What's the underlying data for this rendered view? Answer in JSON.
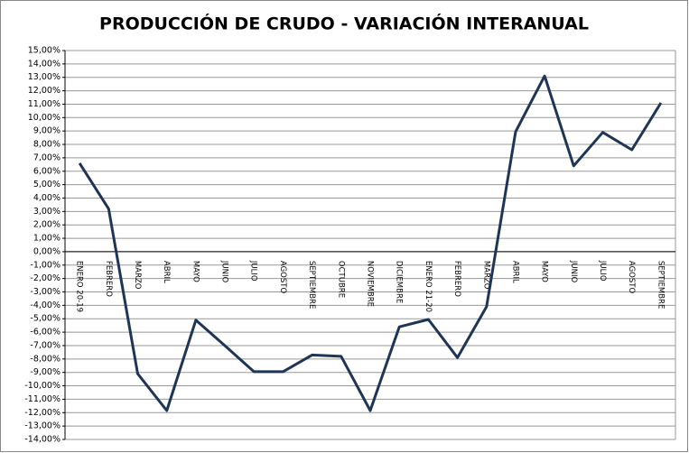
{
  "chart_data": {
    "type": "line",
    "title": "PRODUCCIÓN DE CRUDO - VARIACIÓN INTERANUAL",
    "categories": [
      "ENERO 20-19",
      "FEBRERO",
      "MARZO",
      "ABRIL",
      "MAYO",
      "JUNIO",
      "JULIO",
      "AGOSTO",
      "SEPTIEMBRE",
      "OCTUBRE",
      "NOVIEMBRE",
      "DICIEMBRE",
      "ENERO 21-20",
      "FEBRERO",
      "MARZO",
      "ABRIL",
      "MAYO",
      "JUNIO",
      "JULIO",
      "AGOSTO",
      "SEPTIEMBRE"
    ],
    "values": [
      6.6,
      3.2,
      -9.1,
      -11.85,
      -5.1,
      -7.0,
      -8.95,
      -8.95,
      -7.7,
      -7.8,
      -11.85,
      -5.6,
      -5.05,
      -7.9,
      -4.1,
      8.95,
      13.1,
      6.4,
      8.9,
      7.6,
      11.1
    ],
    "color": "#1f3557",
    "ylim": [
      -14,
      15
    ],
    "yticks": [
      {
        "value": 15,
        "label": "15,00%"
      },
      {
        "value": 14,
        "label": "14,00%"
      },
      {
        "value": 13,
        "label": "13,00%"
      },
      {
        "value": 12,
        "label": "12,00%"
      },
      {
        "value": 11,
        "label": "11,00%"
      },
      {
        "value": 10,
        "label": "10,00%"
      },
      {
        "value": 9,
        "label": "9,00%"
      },
      {
        "value": 8,
        "label": "8,00%"
      },
      {
        "value": 7,
        "label": "7,00%"
      },
      {
        "value": 6,
        "label": "6,00%"
      },
      {
        "value": 5,
        "label": "5,00%"
      },
      {
        "value": 4,
        "label": "4,00%"
      },
      {
        "value": 3,
        "label": "3,00%"
      },
      {
        "value": 2,
        "label": "2,00%"
      },
      {
        "value": 1,
        "label": "1,00%"
      },
      {
        "value": 0,
        "label": "0,00%"
      },
      {
        "value": -1,
        "label": "-1,00%"
      },
      {
        "value": -2,
        "label": "-2,00%"
      },
      {
        "value": -3,
        "label": "-3,00%"
      },
      {
        "value": -4,
        "label": "-4,00%"
      },
      {
        "value": -5,
        "label": "-5,00%"
      },
      {
        "value": -6,
        "label": "-6,00%"
      },
      {
        "value": -7,
        "label": "-7,00%"
      },
      {
        "value": -8,
        "label": "-8,00%"
      },
      {
        "value": -9,
        "label": "-9,00%"
      },
      {
        "value": -10,
        "label": "-10,00%"
      },
      {
        "value": -11,
        "label": "-11,00%"
      },
      {
        "value": -12,
        "label": "-12,00%"
      },
      {
        "value": -13,
        "label": "-13,00%"
      },
      {
        "value": -14,
        "label": "-14,00%"
      }
    ],
    "grid": true
  }
}
